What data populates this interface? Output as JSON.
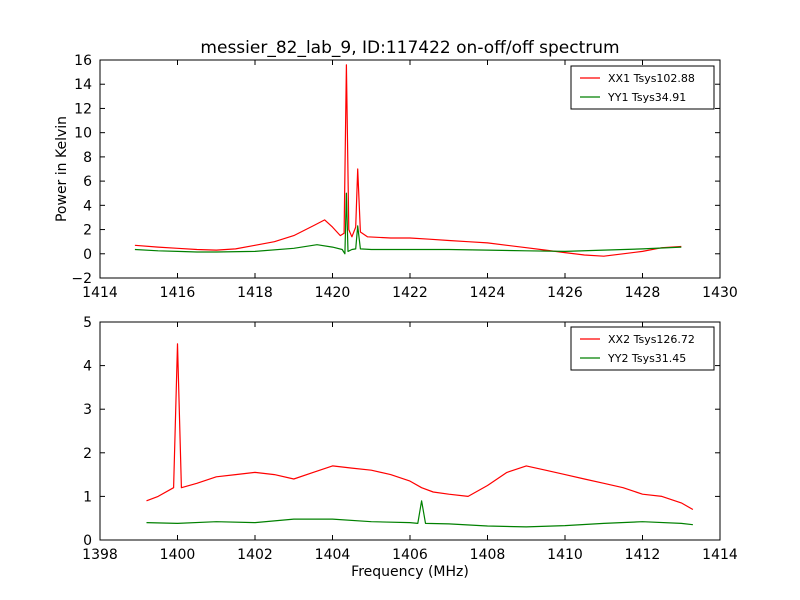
{
  "figure": {
    "title": "messier_82_lab_9, ID:117422 on-off/off spectrum"
  },
  "chart_data": [
    {
      "type": "line",
      "title": "messier_82_lab_9, ID:117422 on-off/off spectrum",
      "xlabel": "",
      "ylabel": "Power in Kelvin",
      "xlim": [
        1414,
        1430
      ],
      "ylim": [
        -2,
        16
      ],
      "xticks": [
        1414,
        1416,
        1418,
        1420,
        1422,
        1424,
        1426,
        1428,
        1430
      ],
      "yticks": [
        -2,
        0,
        2,
        4,
        6,
        8,
        10,
        12,
        14,
        16
      ],
      "legend": "top-right",
      "series": [
        {
          "name": "XX1 Tsys102.88",
          "color": "#ff0000",
          "x": [
            1414.9,
            1415.5,
            1416.0,
            1416.5,
            1417.0,
            1417.5,
            1418.0,
            1418.5,
            1419.0,
            1419.5,
            1419.8,
            1420.0,
            1420.2,
            1420.3,
            1420.36,
            1420.42,
            1420.5,
            1420.6,
            1420.65,
            1420.72,
            1420.9,
            1421.5,
            1422.0,
            1422.5,
            1423.0,
            1423.5,
            1424.0,
            1424.5,
            1425.0,
            1425.5,
            1426.0,
            1426.5,
            1427.0,
            1427.5,
            1428.0,
            1428.5,
            1429.0
          ],
          "y": [
            0.7,
            0.55,
            0.45,
            0.35,
            0.3,
            0.4,
            0.7,
            1.0,
            1.5,
            2.3,
            2.8,
            2.2,
            1.5,
            1.7,
            15.6,
            2.0,
            1.4,
            2.2,
            7.0,
            1.8,
            1.4,
            1.3,
            1.3,
            1.2,
            1.1,
            1.0,
            0.9,
            0.7,
            0.5,
            0.3,
            0.1,
            -0.1,
            -0.2,
            0.0,
            0.2,
            0.5,
            0.6
          ]
        },
        {
          "name": "YY1 Tsys34.91",
          "color": "#008000",
          "x": [
            1414.9,
            1415.5,
            1416.0,
            1416.5,
            1417.0,
            1418.0,
            1419.0,
            1419.6,
            1420.0,
            1420.25,
            1420.32,
            1420.36,
            1420.4,
            1420.5,
            1420.6,
            1420.65,
            1420.72,
            1421.0,
            1422.0,
            1423.0,
            1424.0,
            1425.0,
            1426.0,
            1427.0,
            1428.0,
            1429.0
          ],
          "y": [
            0.35,
            0.25,
            0.2,
            0.15,
            0.15,
            0.2,
            0.45,
            0.75,
            0.55,
            0.35,
            0.0,
            5.0,
            0.2,
            0.35,
            0.4,
            2.3,
            0.4,
            0.35,
            0.35,
            0.35,
            0.3,
            0.25,
            0.2,
            0.3,
            0.4,
            0.55
          ]
        }
      ]
    },
    {
      "type": "line",
      "title": "",
      "xlabel": "Frequency (MHz)",
      "ylabel": "",
      "xlim": [
        1398,
        1414
      ],
      "ylim": [
        0,
        5
      ],
      "xticks": [
        1398,
        1400,
        1402,
        1404,
        1406,
        1408,
        1410,
        1412,
        1414
      ],
      "yticks": [
        0,
        1,
        2,
        3,
        4,
        5
      ],
      "legend": "top-right",
      "series": [
        {
          "name": "XX2 Tsys126.72",
          "color": "#ff0000",
          "x": [
            1399.2,
            1399.5,
            1399.9,
            1400.0,
            1400.1,
            1400.5,
            1401.0,
            1401.5,
            1402.0,
            1402.5,
            1403.0,
            1403.5,
            1404.0,
            1404.5,
            1405.0,
            1405.5,
            1406.0,
            1406.3,
            1406.6,
            1407.0,
            1407.5,
            1408.0,
            1408.5,
            1409.0,
            1409.5,
            1410.0,
            1410.5,
            1411.0,
            1411.5,
            1412.0,
            1412.5,
            1413.0,
            1413.3
          ],
          "y": [
            0.9,
            1.0,
            1.2,
            4.5,
            1.2,
            1.3,
            1.45,
            1.5,
            1.55,
            1.5,
            1.4,
            1.55,
            1.7,
            1.65,
            1.6,
            1.5,
            1.35,
            1.2,
            1.1,
            1.05,
            1.0,
            1.25,
            1.55,
            1.7,
            1.6,
            1.5,
            1.4,
            1.3,
            1.2,
            1.05,
            1.0,
            0.85,
            0.7
          ]
        },
        {
          "name": "YY2 Tsys31.45",
          "color": "#008000",
          "x": [
            1399.2,
            1400.0,
            1401.0,
            1402.0,
            1403.0,
            1404.0,
            1405.0,
            1406.0,
            1406.2,
            1406.3,
            1406.4,
            1407.0,
            1408.0,
            1409.0,
            1410.0,
            1411.0,
            1412.0,
            1413.0,
            1413.3
          ],
          "y": [
            0.4,
            0.38,
            0.42,
            0.4,
            0.48,
            0.48,
            0.42,
            0.4,
            0.38,
            0.9,
            0.38,
            0.37,
            0.32,
            0.3,
            0.33,
            0.38,
            0.42,
            0.38,
            0.35
          ]
        }
      ]
    }
  ]
}
